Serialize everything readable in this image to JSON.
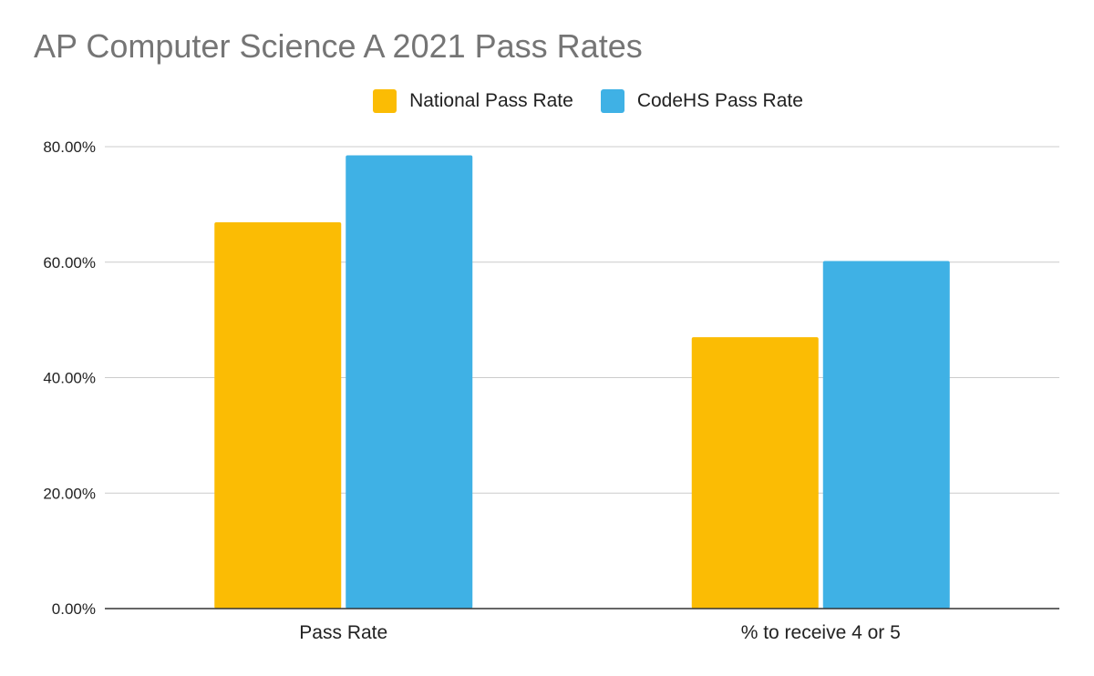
{
  "chart_data": {
    "type": "bar",
    "title": "AP Computer Science A 2021 Pass Rates",
    "categories": [
      "Pass Rate",
      "% to receive 4 or 5"
    ],
    "series": [
      {
        "name": "National Pass Rate",
        "values": [
          66.9,
          47.0
        ],
        "color": "#FBBC04"
      },
      {
        "name": "CodeHS Pass Rate",
        "values": [
          78.5,
          60.2
        ],
        "color": "#3FB1E5"
      }
    ],
    "y_ticks": [
      "0.00%",
      "20.00%",
      "40.00%",
      "60.00%",
      "80.00%"
    ],
    "y_tick_values": [
      0,
      20,
      40,
      60,
      80
    ],
    "ylim": [
      0,
      80
    ],
    "grid": true,
    "legend_position": "top"
  }
}
